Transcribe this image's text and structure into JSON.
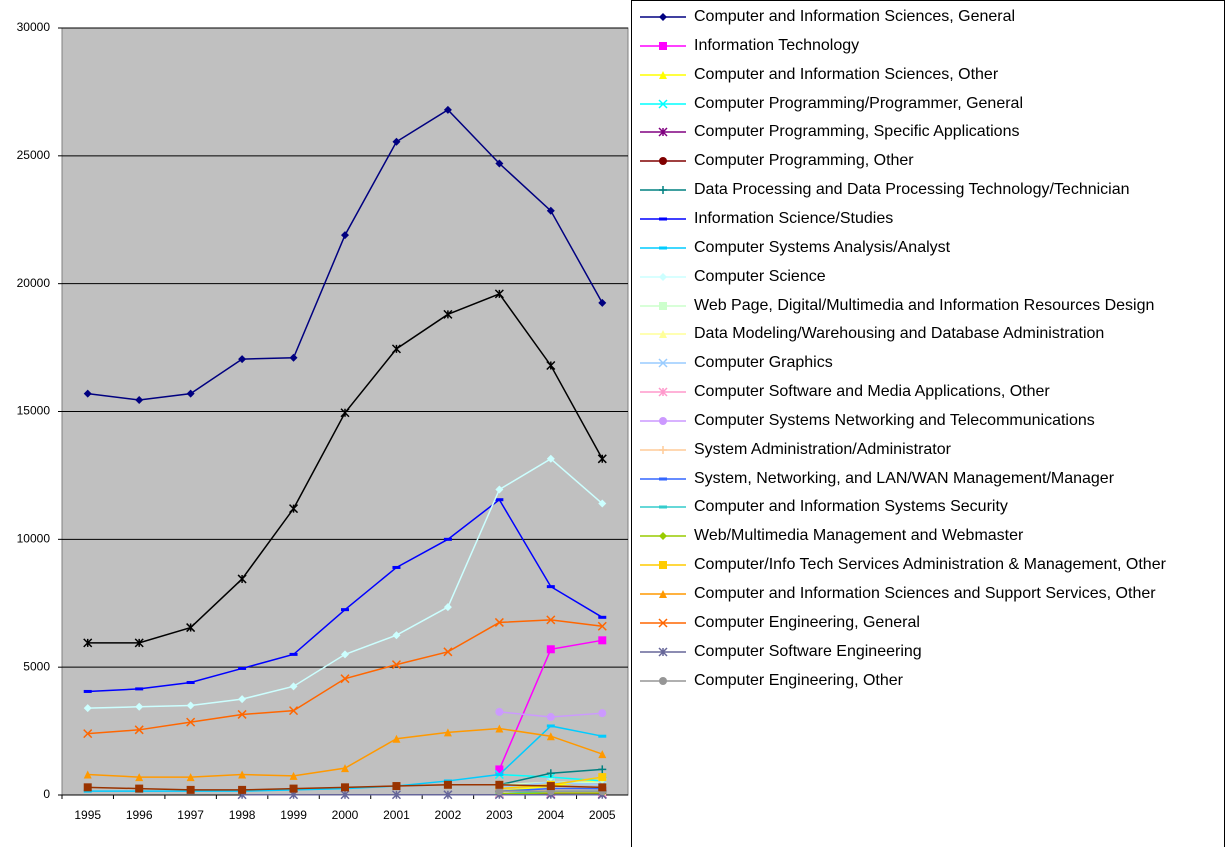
{
  "chart_data": {
    "type": "line",
    "categories": [
      "1995",
      "1996",
      "1997",
      "1998",
      "1999",
      "2000",
      "2001",
      "2002",
      "2003",
      "2004",
      "2005"
    ],
    "ylim": [
      0,
      30000
    ],
    "yticks": [
      0,
      5000,
      10000,
      15000,
      20000,
      25000,
      30000
    ],
    "grid": true,
    "series": [
      {
        "name": "Computer and Information Sciences, General",
        "color": "#000080",
        "marker": "diamond",
        "values": [
          15700,
          15450,
          15700,
          17050,
          17100,
          21900,
          25550,
          26800,
          24700,
          22850,
          19250
        ]
      },
      {
        "name": "Information Technology",
        "color": "#FF00FF",
        "marker": "square",
        "values": [
          null,
          null,
          null,
          null,
          null,
          null,
          null,
          null,
          1000,
          5700,
          6050
        ]
      },
      {
        "name": "Computer and Information Sciences, Other",
        "color": "#FFFF00",
        "marker": "triangle",
        "values": [
          null,
          null,
          null,
          null,
          null,
          null,
          null,
          null,
          150,
          350,
          600
        ]
      },
      {
        "name": "Computer Programming/Programmer, General",
        "color": "#00FFFF",
        "marker": "x",
        "values": [
          null,
          null,
          null,
          null,
          null,
          null,
          null,
          null,
          800,
          700,
          550
        ]
      },
      {
        "name": "Computer Programming, Specific Applications",
        "color": "#800080",
        "marker": "star",
        "values": [
          null,
          null,
          null,
          null,
          null,
          null,
          null,
          null,
          50,
          30,
          30
        ]
      },
      {
        "name": "Computer Programming, Other",
        "color": "#800000",
        "marker": "circle",
        "values": [
          null,
          null,
          null,
          null,
          null,
          null,
          null,
          null,
          100,
          100,
          80
        ]
      },
      {
        "name": "Data Processing and Data Processing Technology/Technician",
        "color": "#008080",
        "marker": "plus",
        "values": [
          null,
          null,
          null,
          null,
          null,
          null,
          null,
          null,
          400,
          850,
          1000
        ]
      },
      {
        "name": "Information Science/Studies",
        "color": "#0000FF",
        "marker": "dash",
        "values": [
          4050,
          4150,
          4400,
          4950,
          5500,
          7250,
          8900,
          10000,
          11550,
          8150,
          6950
        ]
      },
      {
        "name": "Computer Systems Analysis/Analyst",
        "color": "#00CCFF",
        "marker": "dash",
        "values": [
          150,
          150,
          150,
          150,
          200,
          250,
          350,
          550,
          800,
          2700,
          2300
        ]
      },
      {
        "name": "Computer Science",
        "color": "#CCFFFF",
        "marker": "diamond",
        "values": [
          3400,
          3450,
          3500,
          3750,
          4250,
          5500,
          6250,
          7350,
          11950,
          13150,
          11400
        ]
      },
      {
        "name": "Web Page, Digital/Multimedia and Information Resources Design",
        "color": "#CCFFCC",
        "marker": "square",
        "values": [
          null,
          null,
          null,
          null,
          null,
          null,
          null,
          null,
          400,
          500,
          500
        ]
      },
      {
        "name": "Data Modeling/Warehousing and Database Administration",
        "color": "#FFFF99",
        "marker": "triangle",
        "values": [
          null,
          null,
          null,
          null,
          null,
          null,
          null,
          null,
          100,
          150,
          150
        ]
      },
      {
        "name": "Computer Graphics",
        "color": "#99CCFF",
        "marker": "x",
        "values": [
          null,
          null,
          null,
          null,
          null,
          null,
          null,
          null,
          300,
          500,
          400
        ]
      },
      {
        "name": "Computer Software and Media Applications, Other",
        "color": "#FF99CC",
        "marker": "star",
        "values": [
          null,
          null,
          null,
          null,
          null,
          null,
          null,
          null,
          50,
          100,
          100
        ]
      },
      {
        "name": "Computer Systems Networking and Telecommunications",
        "color": "#CC99FF",
        "marker": "circle",
        "values": [
          null,
          null,
          null,
          null,
          null,
          null,
          null,
          null,
          3250,
          3050,
          3200
        ]
      },
      {
        "name": "System Administration/Administrator",
        "color": "#FFCC99",
        "marker": "plus",
        "values": [
          null,
          null,
          null,
          null,
          null,
          null,
          null,
          null,
          100,
          200,
          250
        ]
      },
      {
        "name": "System, Networking, and LAN/WAN Management/Manager",
        "color": "#3366FF",
        "marker": "dash",
        "values": [
          null,
          null,
          null,
          null,
          null,
          null,
          null,
          null,
          150,
          250,
          250
        ]
      },
      {
        "name": "Computer and Information Systems Security",
        "color": "#33CCCC",
        "marker": "dash",
        "values": [
          null,
          null,
          null,
          null,
          null,
          null,
          null,
          null,
          50,
          150,
          150
        ]
      },
      {
        "name": "Web/Multimedia Management and Webmaster",
        "color": "#99CC00",
        "marker": "diamond",
        "values": [
          null,
          null,
          null,
          null,
          null,
          null,
          null,
          null,
          50,
          80,
          80
        ]
      },
      {
        "name": "Computer/Info Tech Services Administration & Management, Other",
        "color": "#FFCC00",
        "marker": "square",
        "values": [
          null,
          null,
          null,
          null,
          null,
          null,
          null,
          null,
          250,
          400,
          700
        ]
      },
      {
        "name": "Computer and Information Sciences and Support Services, Other",
        "color": "#FF9900",
        "marker": "triangle",
        "values": [
          800,
          700,
          700,
          800,
          750,
          1050,
          2200,
          2450,
          2600,
          2300,
          1600
        ]
      },
      {
        "name": "Computer Engineering, General",
        "color": "#FF6600",
        "marker": "x",
        "values": [
          2400,
          2550,
          2850,
          3150,
          3300,
          4550,
          5100,
          5600,
          6750,
          6850,
          6600
        ]
      },
      {
        "name": "Computer Software Engineering",
        "color": "#666699",
        "marker": "star",
        "values": [
          null,
          null,
          null,
          10,
          10,
          10,
          10,
          10,
          10,
          10,
          10
        ]
      },
      {
        "name": "Computer Engineering, Other",
        "color": "#969696",
        "marker": "circle",
        "values": [
          null,
          null,
          null,
          null,
          null,
          null,
          null,
          null,
          150,
          150,
          150
        ]
      },
      {
        "color": "#000000",
        "marker": "star",
        "values": [
          5950,
          5950,
          6550,
          8450,
          11200,
          14950,
          17450,
          18800,
          19600,
          16800,
          13150
        ]
      },
      {
        "color": "#993300",
        "marker": "square",
        "values": [
          300,
          250,
          200,
          200,
          250,
          300,
          350,
          400,
          400,
          350,
          300
        ]
      }
    ]
  }
}
